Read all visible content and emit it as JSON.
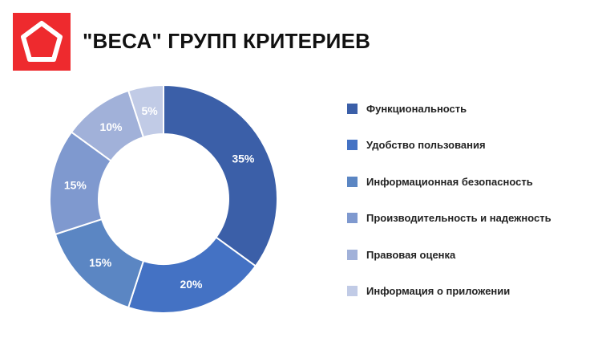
{
  "header": {
    "title": "\"ВЕСА\" ГРУПП КРИТЕРИЕВ",
    "logo_icon": "pentagon-logo-icon",
    "logo_color": "#ee2a2e"
  },
  "chart_data": {
    "type": "pie",
    "variant": "donut",
    "title": "",
    "legend_position": "right",
    "categories": [
      "Функциональность",
      "Удобство пользования",
      "Информационная безопасность",
      "Производительность и надежность",
      "Правовая оценка",
      "Информация о приложении"
    ],
    "values": [
      35,
      20,
      15,
      15,
      10,
      5
    ],
    "labels": [
      "35%",
      "20%",
      "15%",
      "15%",
      "10%",
      "5%"
    ],
    "colors": [
      "#3b5fa8",
      "#4472c4",
      "#5b86c3",
      "#7f99cf",
      "#a1b1d9",
      "#c1cbe6"
    ]
  }
}
